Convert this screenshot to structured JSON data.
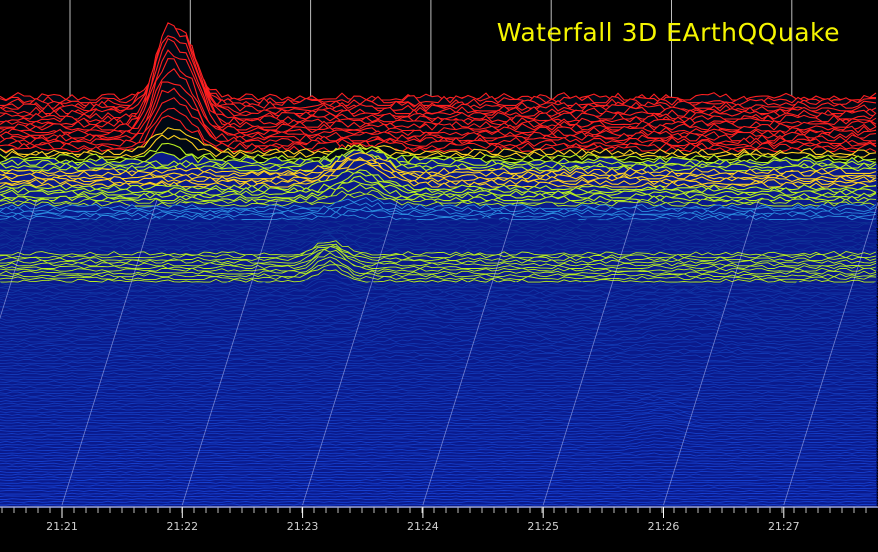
{
  "title": "Waterfall 3D EArthQQuake",
  "chart_data": {
    "type": "waterfall",
    "x_ticks": [
      "21:21",
      "21:22",
      "21:23",
      "21:24",
      "21:25",
      "21:26",
      "21:27"
    ],
    "colors": {
      "background": "#000000",
      "title": "#f5f500",
      "axis": "#ffffff",
      "grid": "#ffffff"
    }
  }
}
